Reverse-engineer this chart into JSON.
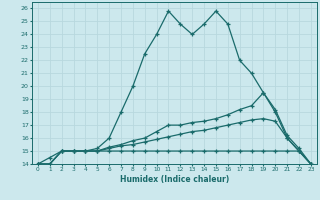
{
  "xlabel": "Humidex (Indice chaleur)",
  "bg_color": "#cce8ed",
  "line_color": "#1a6b6b",
  "grid_color": "#b8d8de",
  "xlim": [
    -0.5,
    23.5
  ],
  "ylim": [
    14,
    26.5
  ],
  "xticks": [
    0,
    1,
    2,
    3,
    4,
    5,
    6,
    7,
    8,
    9,
    10,
    11,
    12,
    13,
    14,
    15,
    16,
    17,
    18,
    19,
    20,
    21,
    22,
    23
  ],
  "yticks": [
    14,
    15,
    16,
    17,
    18,
    19,
    20,
    21,
    22,
    23,
    24,
    25,
    26
  ],
  "line1_x": [
    0,
    1,
    2,
    3,
    4,
    5,
    6,
    7,
    8,
    9,
    10,
    11,
    12,
    13,
    14,
    15,
    16,
    17,
    18,
    19,
    20,
    21,
    22,
    23
  ],
  "line1_y": [
    14,
    14.5,
    15,
    15,
    15,
    15.2,
    16,
    18,
    20,
    22.5,
    24,
    25.8,
    24.8,
    24,
    24.8,
    25.8,
    24.8,
    22,
    21,
    19.5,
    18,
    16,
    15,
    14
  ],
  "line2_x": [
    0,
    1,
    2,
    3,
    4,
    5,
    6,
    7,
    8,
    9,
    10,
    11,
    12,
    13,
    14,
    15,
    16,
    17,
    18,
    19,
    20,
    21,
    22,
    23
  ],
  "line2_y": [
    14,
    14,
    15,
    15,
    15,
    15,
    15.3,
    15.5,
    15.8,
    16.0,
    16.5,
    17.0,
    17.0,
    17.2,
    17.3,
    17.5,
    17.8,
    18.2,
    18.5,
    19.5,
    18.2,
    16.2,
    15.2,
    14
  ],
  "line3_x": [
    0,
    1,
    2,
    3,
    4,
    5,
    6,
    7,
    8,
    9,
    10,
    11,
    12,
    13,
    14,
    15,
    16,
    17,
    18,
    19,
    20,
    21,
    22,
    23
  ],
  "line3_y": [
    14,
    14,
    15,
    15,
    15,
    15,
    15.2,
    15.4,
    15.5,
    15.7,
    15.9,
    16.1,
    16.3,
    16.5,
    16.6,
    16.8,
    17.0,
    17.2,
    17.4,
    17.5,
    17.3,
    16.0,
    15.0,
    14
  ],
  "line4_x": [
    0,
    1,
    2,
    3,
    4,
    5,
    6,
    7,
    8,
    9,
    10,
    11,
    12,
    13,
    14,
    15,
    16,
    17,
    18,
    19,
    20,
    21,
    22,
    23
  ],
  "line4_y": [
    14,
    14,
    15,
    15,
    15,
    15,
    15,
    15,
    15,
    15,
    15,
    15,
    15,
    15,
    15,
    15,
    15,
    15,
    15,
    15,
    15,
    15,
    15,
    14
  ]
}
